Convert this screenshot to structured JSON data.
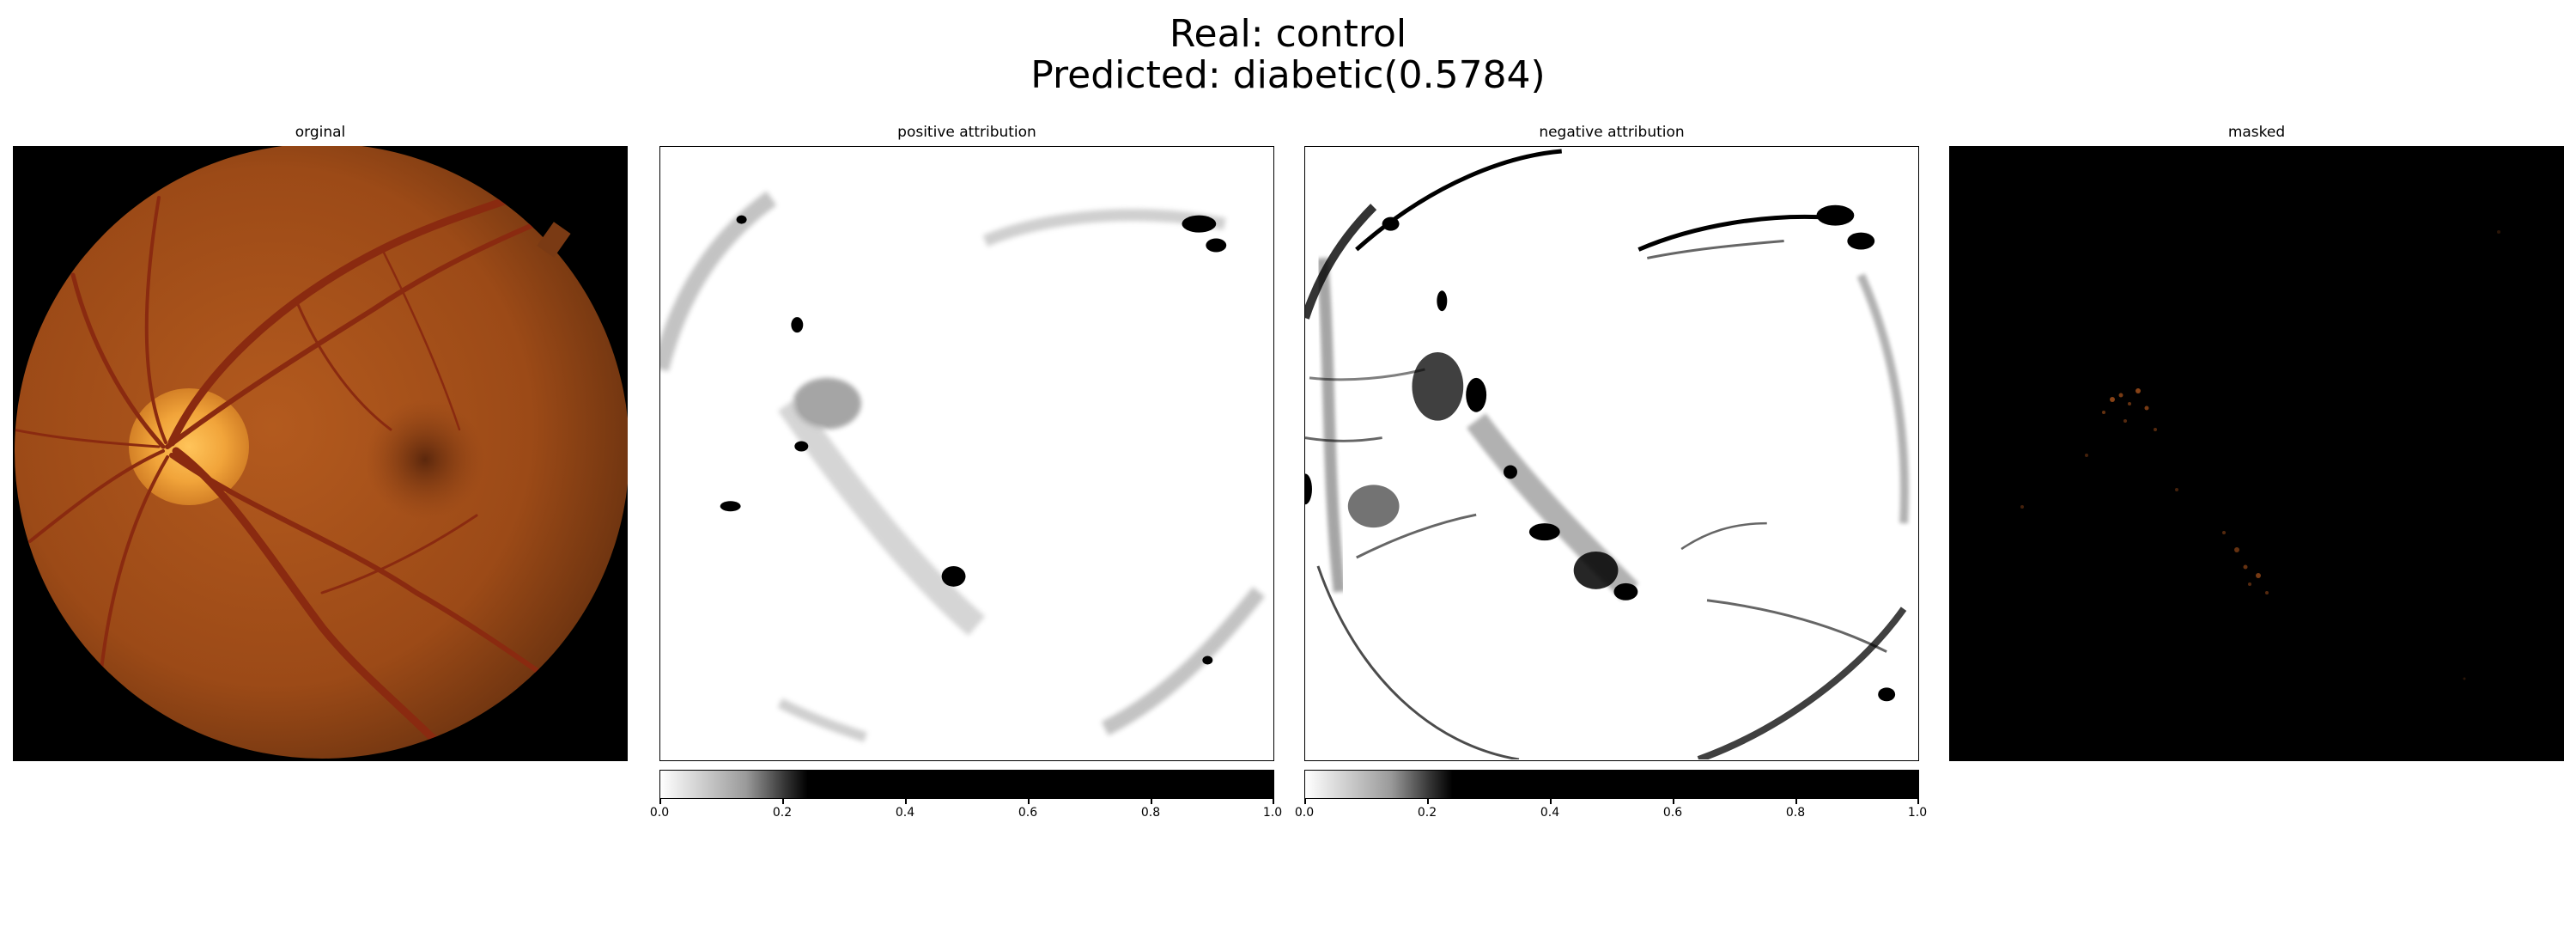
{
  "figure": {
    "title_line1": "Real: control",
    "title_line2": "Predicted: diabetic(0.5784)"
  },
  "panels": [
    {
      "title": "orginal",
      "kind": "fundus-image"
    },
    {
      "title": "positive attribution",
      "kind": "attribution-map",
      "cmap": "gray_r"
    },
    {
      "title": "negative attribution",
      "kind": "attribution-map",
      "cmap": "gray_r"
    },
    {
      "title": "masked",
      "kind": "masked-image"
    }
  ],
  "colorbars": [
    {
      "panel": "positive attribution",
      "range": [
        0.0,
        1.0
      ],
      "ticks": [
        "0.0",
        "0.2",
        "0.4",
        "0.6",
        "0.8",
        "1.0"
      ]
    },
    {
      "panel": "negative attribution",
      "range": [
        0.0,
        1.0
      ],
      "ticks": [
        "0.0",
        "0.2",
        "0.4",
        "0.6",
        "0.8",
        "1.0"
      ]
    }
  ],
  "colors": {
    "background": "#ffffff",
    "fundus_orange": "#a9521b",
    "optic_disc": "#f1a43a",
    "vessel": "#8a2a10"
  }
}
